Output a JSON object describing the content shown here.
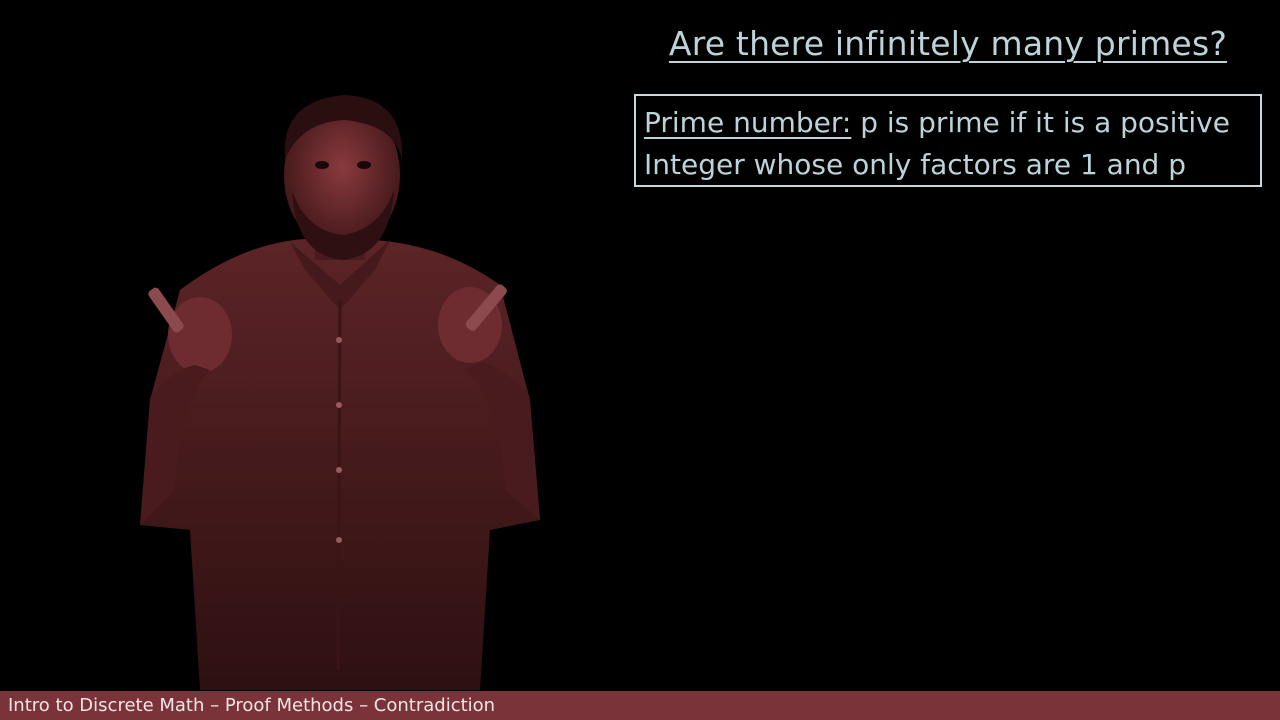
{
  "slide": {
    "title": "Are there infinitely many primes?",
    "definition": {
      "term": "Prime number:",
      "line1_rest": " p is prime if it is a positive",
      "line2": "Integer whose only factors are 1 and p"
    }
  },
  "footer": {
    "caption": "Intro to Discrete Math – Proof Methods – Contradiction"
  },
  "colors": {
    "background": "#000000",
    "text": "#bcd3da",
    "box_border": "#c8d8dc",
    "footer_bar": "#7a3338",
    "footer_text": "#f1e6e6",
    "presenter_tint": "#5a2226"
  }
}
